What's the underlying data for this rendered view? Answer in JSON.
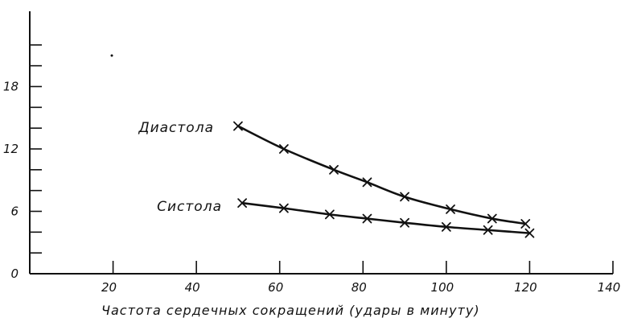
{
  "chart_data": {
    "type": "line",
    "xlabel": "Частота сердечных сокращений (удары в минуту)",
    "ylabel": "",
    "xlim": [
      0,
      140
    ],
    "ylim": [
      0,
      24
    ],
    "x_ticks": [
      {
        "value": 20,
        "label": "20"
      },
      {
        "value": 40,
        "label": "40"
      },
      {
        "value": 60,
        "label": "60"
      },
      {
        "value": 80,
        "label": "80"
      },
      {
        "value": 100,
        "label": "100"
      },
      {
        "value": 120,
        "label": "120"
      },
      {
        "value": 140,
        "label": "140"
      }
    ],
    "y_ticks": [
      {
        "value": 0,
        "label": "0"
      },
      {
        "value": 2,
        "label": ""
      },
      {
        "value": 4,
        "label": ""
      },
      {
        "value": 6,
        "label": "6"
      },
      {
        "value": 8,
        "label": ""
      },
      {
        "value": 10,
        "label": ""
      },
      {
        "value": 12,
        "label": "12"
      },
      {
        "value": 14,
        "label": ""
      },
      {
        "value": 16,
        "label": ""
      },
      {
        "value": 18,
        "label": "18"
      },
      {
        "value": 20,
        "label": ""
      },
      {
        "value": 22,
        "label": ""
      }
    ],
    "series": [
      {
        "name": "Диастола",
        "points": [
          {
            "x": 50,
            "y": 14.2
          },
          {
            "x": 61,
            "y": 12.0
          },
          {
            "x": 73,
            "y": 10.0
          },
          {
            "x": 81,
            "y": 8.8
          },
          {
            "x": 90,
            "y": 7.4
          },
          {
            "x": 101,
            "y": 6.2
          },
          {
            "x": 111,
            "y": 5.3
          },
          {
            "x": 119,
            "y": 4.8
          }
        ]
      },
      {
        "name": "Систола",
        "points": [
          {
            "x": 51,
            "y": 6.8
          },
          {
            "x": 61,
            "y": 6.3
          },
          {
            "x": 72,
            "y": 5.7
          },
          {
            "x": 81,
            "y": 5.3
          },
          {
            "x": 90,
            "y": 4.9
          },
          {
            "x": 100,
            "y": 4.5
          },
          {
            "x": 110,
            "y": 4.2
          },
          {
            "x": 120,
            "y": 3.9
          }
        ]
      }
    ]
  }
}
